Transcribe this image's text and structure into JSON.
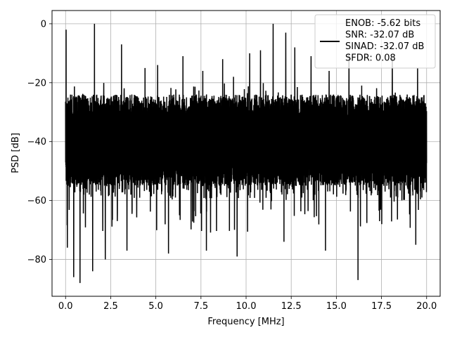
{
  "chart_data": {
    "type": "line",
    "title": "",
    "xlabel": "Frequency [MHz]",
    "ylabel": "PSD [dB]",
    "xlim": [
      -0.75,
      20.75
    ],
    "ylim": [
      -92.5,
      4.5
    ],
    "xticks": [
      0.0,
      2.5,
      5.0,
      7.5,
      10.0,
      12.5,
      15.0,
      17.5,
      20.0
    ],
    "xtick_labels": [
      "0.0",
      "2.5",
      "5.0",
      "7.5",
      "10.0",
      "12.5",
      "15.0",
      "17.5",
      "20.0"
    ],
    "yticks": [
      0,
      -20,
      -40,
      -60,
      -80
    ],
    "ytick_labels": [
      "0",
      "−20",
      "−40",
      "−60",
      "−80"
    ],
    "grid": true,
    "legend_position": "top-right",
    "series": [
      {
        "name": "ENOB: -5.62 bits\nSNR: -32.07 dB\nSINAD: -32.07 dB\nSFDR: 0.08",
        "color": "#000000",
        "x_range": [
          0.0,
          20.0
        ],
        "envelope": {
          "upper_typical": -22,
          "lower_typical": -63,
          "min_value": -88,
          "max_value": 0
        },
        "peaks": [
          {
            "x": 0.03,
            "y": -2
          },
          {
            "x": 0.1,
            "y": -17
          },
          {
            "x": 1.6,
            "y": 0
          },
          {
            "x": 3.1,
            "y": -7
          },
          {
            "x": 4.4,
            "y": -15
          },
          {
            "x": 5.1,
            "y": -14
          },
          {
            "x": 6.5,
            "y": -11
          },
          {
            "x": 7.6,
            "y": -16
          },
          {
            "x": 8.7,
            "y": -12
          },
          {
            "x": 9.3,
            "y": -18
          },
          {
            "x": 10.2,
            "y": -10
          },
          {
            "x": 10.8,
            "y": -9
          },
          {
            "x": 11.5,
            "y": 0
          },
          {
            "x": 12.2,
            "y": -3
          },
          {
            "x": 12.7,
            "y": -8
          },
          {
            "x": 13.6,
            "y": -11
          },
          {
            "x": 14.6,
            "y": -16
          },
          {
            "x": 15.7,
            "y": -10
          },
          {
            "x": 16.6,
            "y": -14
          },
          {
            "x": 18.1,
            "y": -12
          },
          {
            "x": 19.5,
            "y": -15
          }
        ],
        "troughs": [
          {
            "x": 0.1,
            "y": -76
          },
          {
            "x": 0.45,
            "y": -86
          },
          {
            "x": 0.8,
            "y": -88
          },
          {
            "x": 1.5,
            "y": -84
          },
          {
            "x": 2.2,
            "y": -80
          },
          {
            "x": 3.4,
            "y": -77
          },
          {
            "x": 5.7,
            "y": -78
          },
          {
            "x": 7.8,
            "y": -77
          },
          {
            "x": 9.5,
            "y": -79
          },
          {
            "x": 12.1,
            "y": -74
          },
          {
            "x": 14.4,
            "y": -77
          },
          {
            "x": 16.2,
            "y": -87
          },
          {
            "x": 19.4,
            "y": -75
          }
        ]
      }
    ]
  }
}
